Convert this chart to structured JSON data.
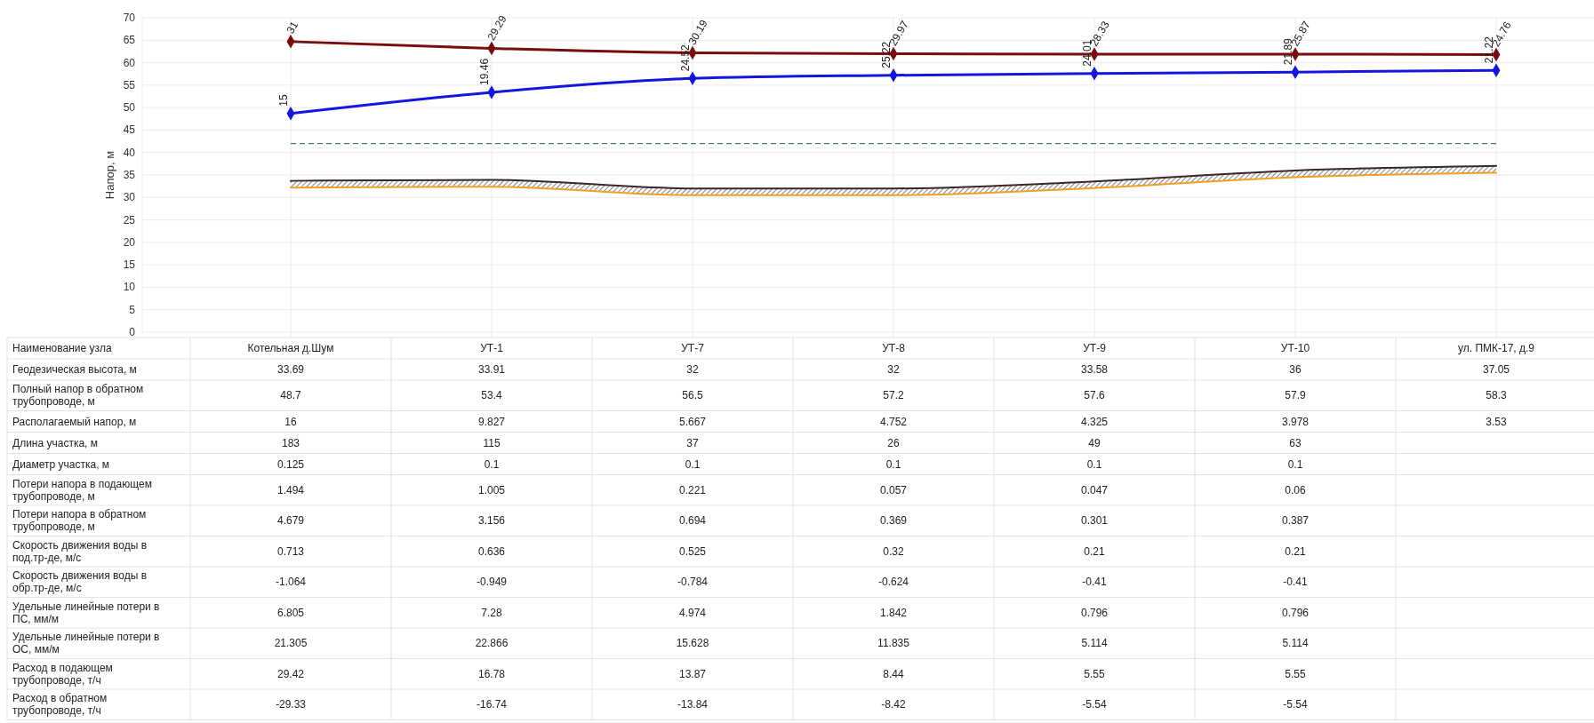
{
  "chart_data": [
    {
      "type": "line",
      "ylabel": "Напор, м",
      "tick_labels": "y",
      "categories": [
        "Котельная д.Шум",
        "УТ-1",
        "УТ-7",
        "УТ-8",
        "УТ-9",
        "УТ-10",
        "ул. ПМК-17, д.9"
      ],
      "series": [
        {
          "color": "#7a0c0c",
          "marker": "diamond",
          "values": [
            64.7,
            63.2,
            62.2,
            62.0,
            61.9,
            61.9,
            61.8
          ]
        },
        {
          "color": "#1515e0",
          "marker": "diamond",
          "values": [
            48.7,
            53.4,
            56.5,
            57.2,
            57.6,
            57.9,
            58.3
          ]
        },
        {
          "color": "#f0a020",
          "marker": "none",
          "values": [
            32.2,
            32.4,
            30.5,
            30.5,
            32.1,
            34.5,
            35.5
          ]
        },
        {
          "color": "#3a2626",
          "marker": "none",
          "values": [
            33.69,
            33.91,
            32,
            32,
            33.58,
            36,
            37.05
          ]
        }
      ],
      "ylim": [
        0,
        70
      ],
      "yticks": [
        0,
        5,
        10,
        15,
        20,
        25,
        30,
        35,
        40,
        45,
        50,
        55,
        60,
        65,
        70
      ],
      "grid": true,
      "ref_lines": [
        {
          "axis": "y",
          "value": 42,
          "color": "#4a6a90",
          "line_style": "dashed"
        }
      ],
      "annotations": [
        {
          "text": "31",
          "x": "Котельная д.Шум",
          "y": 64.7
        },
        {
          "text": "29.29",
          "x": "УТ-1",
          "y": 63.2
        },
        {
          "text": "30.19",
          "x": "УТ-7",
          "y": 62.2
        },
        {
          "text": "29.97",
          "x": "УТ-8",
          "y": 62.0
        },
        {
          "text": "28.33",
          "x": "УТ-9",
          "y": 61.9
        },
        {
          "text": "25.87",
          "x": "УТ-10",
          "y": 61.9
        },
        {
          "text": "24.76",
          "x": "ул. ПМК-17, д.9",
          "y": 61.8
        },
        {
          "text": "15",
          "x": "Котельная д.Шум",
          "y": 48.7
        },
        {
          "text": "19.46",
          "x": "УТ-1",
          "y": 53.4
        },
        {
          "text": "24.52",
          "x": "УТ-7",
          "y": 56.5
        },
        {
          "text": "25.22",
          "x": "УТ-8",
          "y": 57.2
        },
        {
          "text": "24.01",
          "x": "УТ-9",
          "y": 57.6
        },
        {
          "text": "21.89",
          "x": "УТ-10",
          "y": 57.9
        },
        {
          "text": "21.22",
          "x": "ул. ПМК-17, д.9",
          "y": 58.3
        }
      ]
    },
    {
      "type": "other",
      "data_labels": true,
      "xlabel": "Наименование узла",
      "categories": [
        "Котельная д.Шум",
        "УТ-1",
        "УТ-7",
        "УТ-8",
        "УТ-9",
        "УТ-10",
        "ул. ПМК-17, д.9"
      ],
      "series": [
        {
          "name": "Геодезическая высота, м",
          "values": [
            33.69,
            33.91,
            32,
            32,
            33.58,
            36,
            37.05
          ]
        },
        {
          "name": "Полный напор в обратном трубопроводе, м",
          "values": [
            48.7,
            53.4,
            56.5,
            57.2,
            57.6,
            57.9,
            58.3
          ]
        },
        {
          "name": "Располагаемый напор, м",
          "values": [
            16,
            9.827,
            5.667,
            4.752,
            4.325,
            3.978,
            3.53
          ]
        },
        {
          "name": "Длина участка, м",
          "values": [
            183,
            115,
            37,
            26,
            49,
            63,
            null
          ]
        },
        {
          "name": "Диаметр участка, м",
          "values": [
            0.125,
            0.1,
            0.1,
            0.1,
            0.1,
            0.1,
            null
          ]
        },
        {
          "name": "Потери напора в подающем трубопроводе, м",
          "values": [
            1.494,
            1.005,
            0.221,
            0.057,
            0.047,
            0.06,
            null
          ]
        },
        {
          "name": "Потери напора в обратном трубопроводе, м",
          "values": [
            4.679,
            3.156,
            0.694,
            0.369,
            0.301,
            0.387,
            null
          ]
        },
        {
          "name": "Скорость движения воды в под.тр-де, м/с",
          "values": [
            0.713,
            0.636,
            0.525,
            0.32,
            0.21,
            0.21,
            null
          ]
        },
        {
          "name": "Скорость движения воды в обр.тр-де, м/с",
          "values": [
            -1.064,
            -0.949,
            -0.784,
            -0.624,
            -0.41,
            -0.41,
            null
          ]
        },
        {
          "name": "Удельные линейные потери в ПС, мм/м",
          "values": [
            6.805,
            7.28,
            4.974,
            1.842,
            0.796,
            0.796,
            null
          ]
        },
        {
          "name": "Удельные линейные потери в ОС, мм/м",
          "values": [
            21.305,
            22.866,
            15.628,
            11.835,
            5.114,
            5.114,
            null
          ]
        },
        {
          "name": "Расход в подающем трубопроводе, т/ч",
          "values": [
            29.42,
            16.78,
            13.87,
            8.44,
            5.55,
            5.55,
            null
          ]
        },
        {
          "name": "Расход в обратном трубопроводе, т/ч",
          "values": [
            -29.33,
            -16.74,
            -13.84,
            -8.42,
            -5.54,
            -5.54,
            null
          ]
        }
      ]
    }
  ]
}
